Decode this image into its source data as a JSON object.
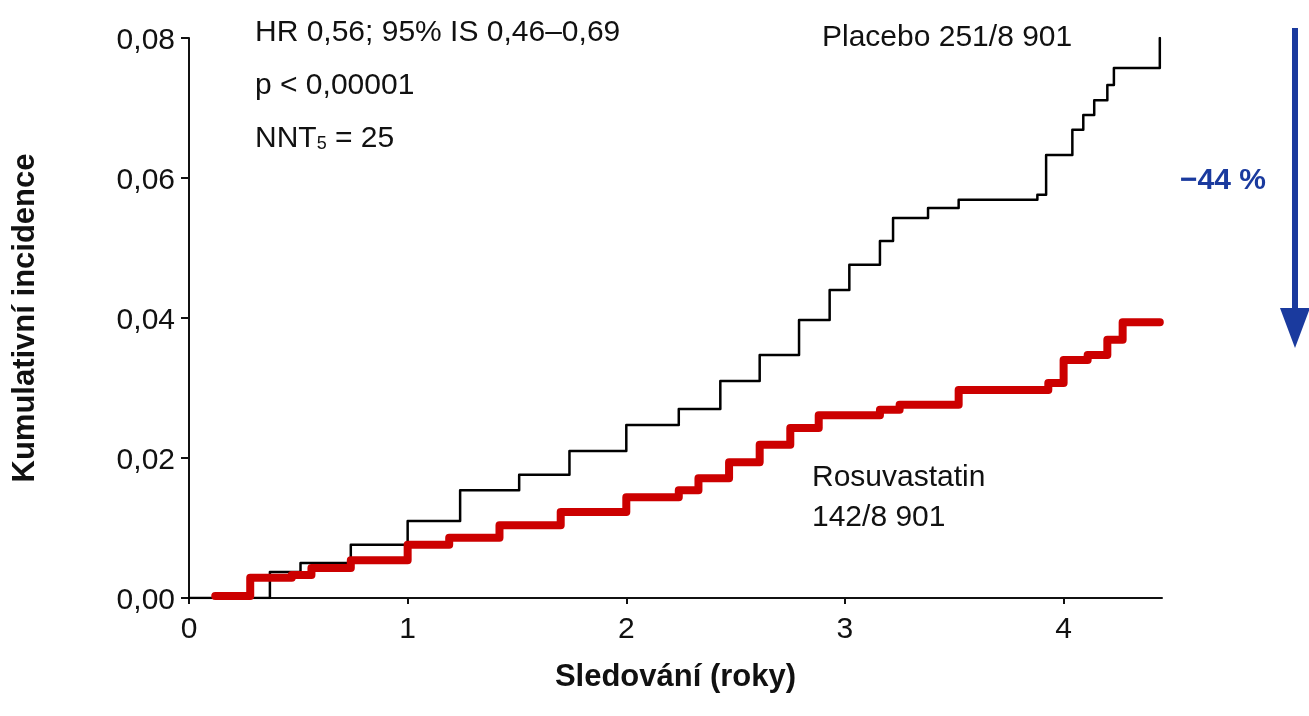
{
  "chart_data": {
    "type": "step",
    "xlabel": "Sledování (roky)",
    "ylabel": "Kumulativní incidence",
    "xlim": [
      0,
      4.45
    ],
    "xticks": [
      0,
      1,
      2,
      3,
      4
    ],
    "ylim": [
      0,
      0.08
    ],
    "yticks": [
      {
        "value": 0,
        "label": "0,00"
      },
      {
        "value": 0.02,
        "label": "0,02"
      },
      {
        "value": 0.04,
        "label": "0,04"
      },
      {
        "value": 0.06,
        "label": "0,06"
      },
      {
        "value": 0.08,
        "label": "0,08"
      }
    ],
    "grid": false,
    "legend": false,
    "marker": "none",
    "line_style": "solid",
    "annotations": [
      "HR 0,56; 95% IS 0,46–0,69",
      "p < 0,00001",
      "NNT$_{5}$ = 25",
      "−44 %"
    ],
    "series": [
      {
        "name": "Placebo 251/8 901",
        "color": "#000000",
        "x": [
          0,
          0.37,
          0.51,
          0.74,
          1.0,
          1.24,
          1.51,
          1.74,
          2.0,
          2.24,
          2.43,
          2.61,
          2.79,
          2.93,
          3.02,
          3.16,
          3.22,
          3.38,
          3.52,
          3.88,
          3.92,
          4.0,
          4.04,
          4.09,
          4.14,
          4.2,
          4.23,
          4.41,
          4.44
        ],
        "values": [
          0,
          0.0037,
          0.005,
          0.0076,
          0.011,
          0.0154,
          0.0176,
          0.021,
          0.0247,
          0.027,
          0.031,
          0.0347,
          0.0397,
          0.044,
          0.0476,
          0.051,
          0.0543,
          0.0557,
          0.0569,
          0.0576,
          0.0633,
          0.0633,
          0.0669,
          0.069,
          0.0711,
          0.0733,
          0.0757,
          0.0757,
          0.08
        ]
      },
      {
        "name": "Rosuvastatin\n142/8 901",
        "color": "#cc0000",
        "x": [
          0.12,
          0.28,
          0.47,
          0.56,
          0.74,
          1.0,
          1.19,
          1.42,
          1.7,
          2.0,
          2.24,
          2.33,
          2.47,
          2.61,
          2.75,
          2.88,
          3.16,
          3.25,
          3.52,
          3.93,
          4.0,
          4.11,
          4.2,
          4.27,
          4.44
        ],
        "values": [
          0.0003,
          0.0029,
          0.0033,
          0.0043,
          0.0054,
          0.0076,
          0.0086,
          0.0104,
          0.0123,
          0.0144,
          0.0154,
          0.0171,
          0.0194,
          0.0219,
          0.0243,
          0.0261,
          0.0269,
          0.0276,
          0.0297,
          0.0307,
          0.034,
          0.0347,
          0.0369,
          0.0394,
          0.0394
        ]
      }
    ]
  }
}
